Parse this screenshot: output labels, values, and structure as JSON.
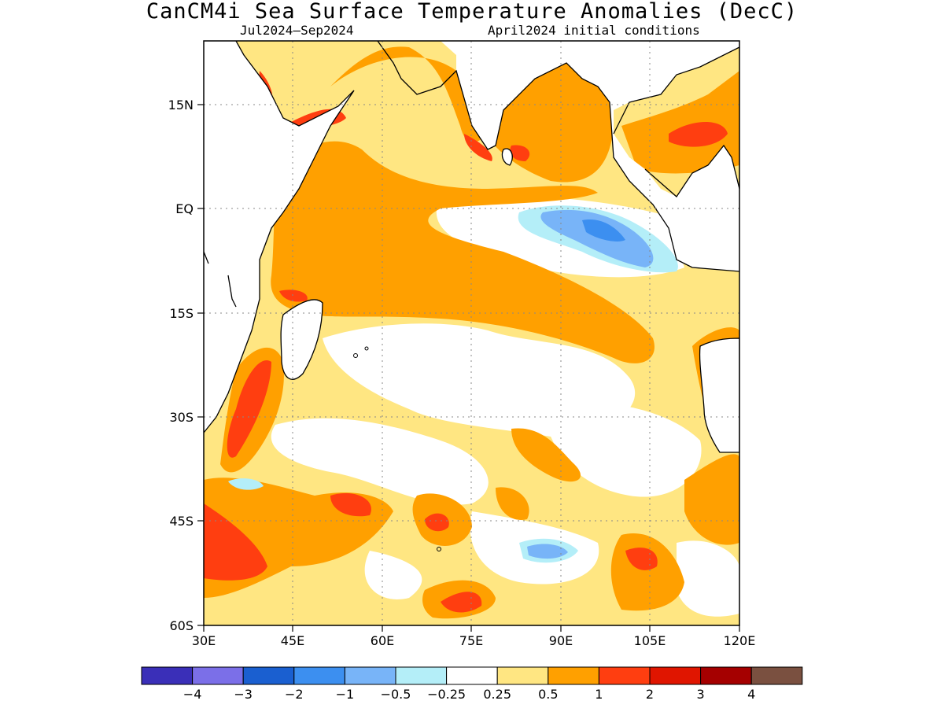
{
  "title": "CanCM4i Sea Surface Temperature Anomalies (DecC)",
  "subtitle_left": "Jul2024—Sep2024",
  "subtitle_right": "April2024 initial conditions",
  "map": {
    "region": "Indian Ocean",
    "lon_range": [
      30,
      120
    ],
    "lat_range": [
      -60,
      24
    ],
    "x_ticks": [
      "30E",
      "45E",
      "60E",
      "75E",
      "90E",
      "105E",
      "120E"
    ],
    "y_ticks": [
      "15N",
      "EQ",
      "15S",
      "30S",
      "45S",
      "60S"
    ],
    "gridlines": "dotted"
  },
  "colorbar": {
    "colors": [
      "#3a2fb8",
      "#7b6fe8",
      "#1a5fd0",
      "#3c8ff0",
      "#78b4f8",
      "#b4eef8",
      "#ffffff",
      "#ffe682",
      "#ffa000",
      "#ff3e10",
      "#e01500",
      "#a50000",
      "#7a5040"
    ],
    "labels": [
      "−4",
      "−3",
      "−2",
      "−1",
      "−0.5",
      "−0.25",
      "0.25",
      "0.5",
      "1",
      "2",
      "3",
      "4"
    ]
  }
}
